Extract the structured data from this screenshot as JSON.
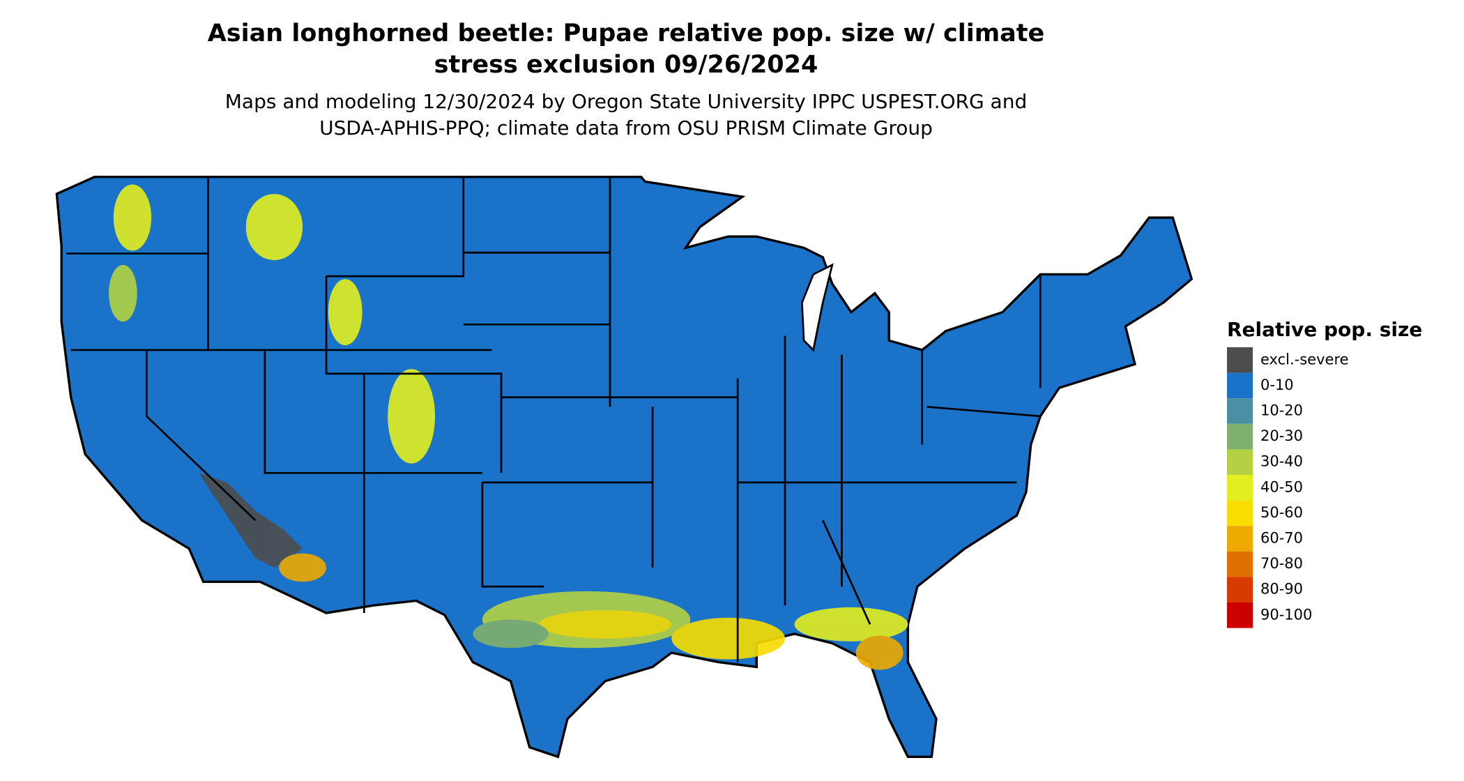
{
  "title": [
    "Asian longhorned beetle: Pupae relative pop. size w/ climate",
    "stress exclusion 09/26/2024"
  ],
  "subtitle": [
    "Maps and modeling 12/30/2024 by Oregon State University IPPC USPEST.ORG and",
    "USDA-APHIS-PPQ; climate data from OSU PRISM Climate Group"
  ],
  "legend": {
    "title": "Relative pop. size",
    "items": [
      {
        "label": "excl.-severe",
        "color": "#4d4d4d"
      },
      {
        "label": "0-10",
        "color": "#1a73c9"
      },
      {
        "label": "10-20",
        "color": "#4a8fa3"
      },
      {
        "label": "20-30",
        "color": "#7fb06f"
      },
      {
        "label": "30-40",
        "color": "#b3d143"
      },
      {
        "label": "40-50",
        "color": "#e3ee1e"
      },
      {
        "label": "50-60",
        "color": "#f7dd00"
      },
      {
        "label": "60-70",
        "color": "#eeaa00"
      },
      {
        "label": "70-80",
        "color": "#e07000"
      },
      {
        "label": "80-90",
        "color": "#d93a00"
      },
      {
        "label": "90-100",
        "color": "#cc0000"
      }
    ]
  }
}
